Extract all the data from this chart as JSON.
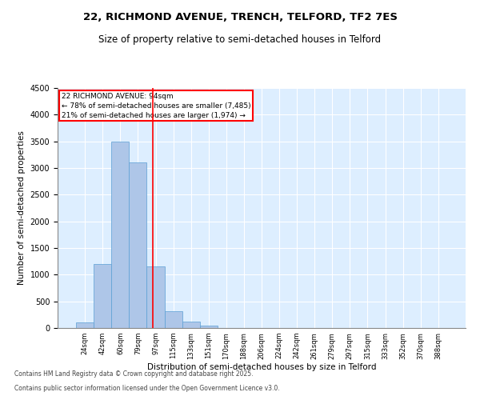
{
  "title_line1": "22, RICHMOND AVENUE, TRENCH, TELFORD, TF2 7ES",
  "title_line2": "Size of property relative to semi-detached houses in Telford",
  "xlabel": "Distribution of semi-detached houses by size in Telford",
  "ylabel": "Number of semi-detached properties",
  "categories": [
    "24sqm",
    "42sqm",
    "60sqm",
    "79sqm",
    "97sqm",
    "115sqm",
    "133sqm",
    "151sqm",
    "170sqm",
    "188sqm",
    "206sqm",
    "224sqm",
    "242sqm",
    "261sqm",
    "279sqm",
    "297sqm",
    "315sqm",
    "333sqm",
    "352sqm",
    "370sqm",
    "388sqm"
  ],
  "values": [
    100,
    1200,
    3500,
    3100,
    1150,
    320,
    120,
    50,
    5,
    0,
    0,
    0,
    0,
    0,
    0,
    0,
    0,
    0,
    0,
    0,
    0
  ],
  "bar_color": "#aec6e8",
  "bar_edge_color": "#5a9fd4",
  "annotation_title": "22 RICHMOND AVENUE: 94sqm",
  "annotation_line1": "← 78% of semi-detached houses are smaller (7,485)",
  "annotation_line2": "21% of semi-detached houses are larger (1,974) →",
  "ylim": [
    0,
    4500
  ],
  "yticks": [
    0,
    500,
    1000,
    1500,
    2000,
    2500,
    3000,
    3500,
    4000,
    4500
  ],
  "footnote_line1": "Contains HM Land Registry data © Crown copyright and database right 2025.",
  "footnote_line2": "Contains public sector information licensed under the Open Government Licence v3.0.",
  "plot_bg_color": "#ddeeff"
}
